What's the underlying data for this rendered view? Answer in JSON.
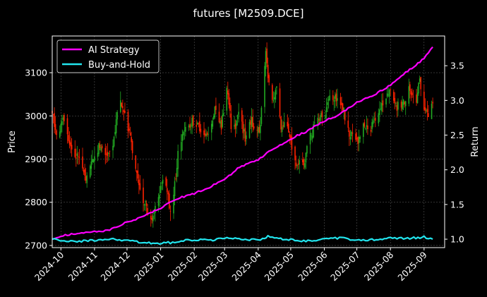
{
  "chart_data": {
    "type": "line",
    "title": "futures [M2509.DCE]",
    "ylabel": "Price",
    "y2label": "Return",
    "ylim": [
      2695,
      3185
    ],
    "y2lim": [
      0.8785,
      3.9286
    ],
    "y_ticks": [
      2700,
      2800,
      2900,
      3000,
      3100
    ],
    "y2_ticks": [
      1.0,
      1.5,
      2.0,
      2.5,
      3.0,
      3.5
    ],
    "xlim": [
      "2024-09-23",
      "2025-09-20"
    ],
    "x_ticks": [
      "2024-10",
      "2024-11",
      "2024-12",
      "2025-01",
      "2025-02",
      "2025-03",
      "2025-04",
      "2025-05",
      "2025-06",
      "2025-07",
      "2025-08",
      "2025-09"
    ],
    "grid": true,
    "legend_position": "top-left",
    "candlestick": {
      "series_axis": "left",
      "up_color": "#22aa22",
      "down_color": "#ff2200",
      "close_anchors": [
        [
          "2024-09-23",
          3005
        ],
        [
          "2024-09-27",
          2950
        ],
        [
          "2024-10-03",
          2995
        ],
        [
          "2024-10-10",
          2935
        ],
        [
          "2024-10-18",
          2890
        ],
        [
          "2024-10-24",
          2850
        ],
        [
          "2024-10-31",
          2895
        ],
        [
          "2024-11-06",
          2935
        ],
        [
          "2024-11-13",
          2895
        ],
        [
          "2024-11-19",
          2950
        ],
        [
          "2024-11-24",
          3030
        ],
        [
          "2024-12-01",
          2990
        ],
        [
          "2024-12-07",
          2910
        ],
        [
          "2024-12-12",
          2830
        ],
        [
          "2024-12-18",
          2790
        ],
        [
          "2024-12-23",
          2760
        ],
        [
          "2024-12-28",
          2795
        ],
        [
          "2025-01-05",
          2855
        ],
        [
          "2025-01-10",
          2780
        ],
        [
          "2025-01-14",
          2840
        ],
        [
          "2025-01-18",
          2930
        ],
        [
          "2025-01-24",
          2975
        ],
        [
          "2025-02-02",
          2990
        ],
        [
          "2025-02-08",
          2960
        ],
        [
          "2025-02-14",
          2970
        ],
        [
          "2025-02-20",
          3010
        ],
        [
          "2025-02-26",
          2980
        ],
        [
          "2025-03-03",
          3060
        ],
        [
          "2025-03-08",
          2960
        ],
        [
          "2025-03-14",
          3000
        ],
        [
          "2025-03-20",
          2950
        ],
        [
          "2025-03-26",
          2985
        ],
        [
          "2025-04-02",
          2960
        ],
        [
          "2025-04-08",
          3140
        ],
        [
          "2025-04-13",
          3020
        ],
        [
          "2025-04-18",
          3060
        ],
        [
          "2025-04-22",
          2980
        ],
        [
          "2025-04-27",
          2990
        ],
        [
          "2025-05-04",
          2900
        ],
        [
          "2025-05-12",
          2880
        ],
        [
          "2025-05-18",
          2950
        ],
        [
          "2025-05-24",
          2980
        ],
        [
          "2025-06-01",
          3010
        ],
        [
          "2025-06-08",
          3050
        ],
        [
          "2025-06-14",
          3040
        ],
        [
          "2025-06-20",
          3000
        ],
        [
          "2025-06-24",
          2960
        ],
        [
          "2025-07-01",
          2940
        ],
        [
          "2025-07-08",
          2980
        ],
        [
          "2025-07-14",
          2970
        ],
        [
          "2025-07-20",
          3010
        ],
        [
          "2025-07-26",
          3040
        ],
        [
          "2025-08-01",
          3050
        ],
        [
          "2025-08-06",
          3020
        ],
        [
          "2025-08-12",
          3020
        ],
        [
          "2025-08-18",
          3060
        ],
        [
          "2025-08-24",
          3030
        ],
        [
          "2025-08-28",
          3080
        ],
        [
          "2025-09-02",
          3010
        ],
        [
          "2025-09-06",
          3010
        ],
        [
          "2025-09-09",
          3030
        ]
      ]
    },
    "series": [
      {
        "name": "AI Strategy",
        "axis": "right",
        "color": "#ff00ff",
        "points": [
          [
            "2024-09-23",
            1.0
          ],
          [
            "2024-10-05",
            1.06
          ],
          [
            "2024-10-20",
            1.09
          ],
          [
            "2024-11-05",
            1.11
          ],
          [
            "2024-11-15",
            1.13
          ],
          [
            "2024-12-01",
            1.25
          ],
          [
            "2024-12-15",
            1.32
          ],
          [
            "2025-01-01",
            1.45
          ],
          [
            "2025-01-15",
            1.58
          ],
          [
            "2025-02-01",
            1.66
          ],
          [
            "2025-02-15",
            1.75
          ],
          [
            "2025-03-01",
            1.86
          ],
          [
            "2025-03-15",
            2.04
          ],
          [
            "2025-04-01",
            2.15
          ],
          [
            "2025-04-15",
            2.3
          ],
          [
            "2025-05-01",
            2.45
          ],
          [
            "2025-05-15",
            2.55
          ],
          [
            "2025-06-01",
            2.7
          ],
          [
            "2025-06-15",
            2.8
          ],
          [
            "2025-07-01",
            2.97
          ],
          [
            "2025-07-15",
            3.06
          ],
          [
            "2025-08-01",
            3.22
          ],
          [
            "2025-08-15",
            3.4
          ],
          [
            "2025-09-01",
            3.6
          ],
          [
            "2025-09-09",
            3.77
          ]
        ]
      },
      {
        "name": "Buy-and-Hold",
        "axis": "right",
        "color": "#22e5ee",
        "points": [
          [
            "2024-09-23",
            1.0
          ],
          [
            "2024-10-10",
            0.97
          ],
          [
            "2024-11-01",
            0.98
          ],
          [
            "2024-11-20",
            1.0
          ],
          [
            "2024-12-10",
            0.96
          ],
          [
            "2024-12-25",
            0.94
          ],
          [
            "2025-01-10",
            0.95
          ],
          [
            "2025-01-20",
            0.98
          ],
          [
            "2025-02-01",
            0.99
          ],
          [
            "2025-02-20",
            0.99
          ],
          [
            "2025-03-05",
            1.02
          ],
          [
            "2025-03-20",
            0.99
          ],
          [
            "2025-04-05",
            1.0
          ],
          [
            "2025-04-10",
            1.05
          ],
          [
            "2025-04-20",
            1.01
          ],
          [
            "2025-05-01",
            0.99
          ],
          [
            "2025-05-15",
            0.97
          ],
          [
            "2025-06-01",
            1.0
          ],
          [
            "2025-06-15",
            1.02
          ],
          [
            "2025-07-01",
            0.98
          ],
          [
            "2025-07-15",
            0.99
          ],
          [
            "2025-08-01",
            1.02
          ],
          [
            "2025-08-15",
            1.01
          ],
          [
            "2025-09-01",
            1.03
          ],
          [
            "2025-09-09",
            1.0
          ]
        ]
      }
    ]
  }
}
